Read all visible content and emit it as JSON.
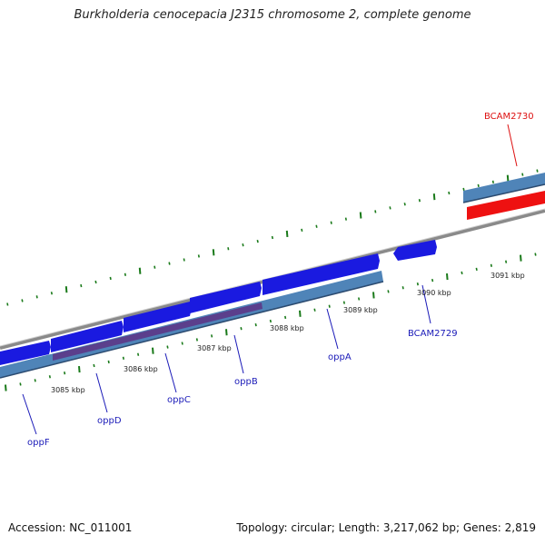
{
  "title": "Burkholderia cenocepacia J2315 chromosome 2, complete genome",
  "footer": {
    "accession": "Accession: NC_011001",
    "summary": "Topology: circular; Length: 3,217,062 bp; Genes: 2,819"
  },
  "colors": {
    "background": "#ffffff",
    "backbone": "#8a8a8a",
    "cds_forward": "#1a1ae0",
    "cds_reverse": "#4f84b8",
    "cds_highlight": "#ee1111",
    "gene_label_default": "#1a1ab8",
    "gene_label_highlight": "#dd1111",
    "ticks": "#1a7a1a",
    "operon_band": "#5b3f8c"
  },
  "genes": [
    {
      "name": "oppF",
      "color": "#1a1ab8"
    },
    {
      "name": "oppD",
      "color": "#1a1ab8"
    },
    {
      "name": "oppC",
      "color": "#1a1ab8"
    },
    {
      "name": "oppB",
      "color": "#1a1ab8"
    },
    {
      "name": "oppA",
      "color": "#1a1ab8"
    },
    {
      "name": "BCAM2729",
      "color": "#1a1ab8"
    },
    {
      "name": "BCAM2730",
      "color": "#dd1111"
    }
  ],
  "scale_labels": [
    "3085 kbp",
    "3086 kbp",
    "3087 kbp",
    "3088 kbp",
    "3089 kbp",
    "3090 kbp",
    "3091 kbp"
  ]
}
